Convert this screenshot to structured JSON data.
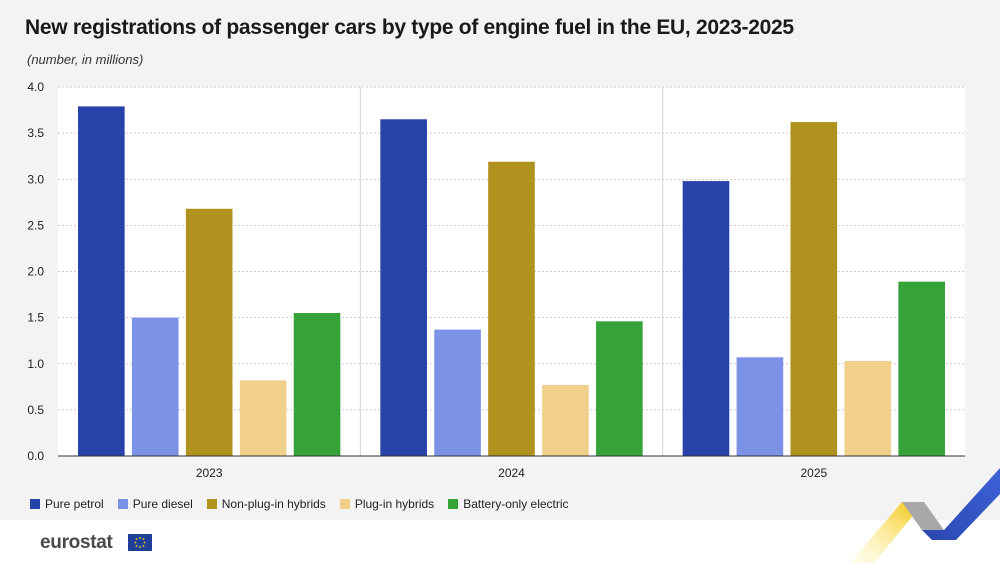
{
  "title": "New registrations of passenger cars by type of engine fuel in the EU, 2023-2025",
  "subtitle": "(number, in millions)",
  "brand": "eurostat",
  "colors": {
    "background": "#f3f3f3",
    "plot_background": "#ffffff",
    "grid": "#bdbdbd"
  },
  "chart_data": {
    "type": "bar",
    "categories": [
      "2023",
      "2024",
      "2025"
    ],
    "series": [
      {
        "name": "Pure petrol",
        "color": "#2743a8",
        "values": [
          3.79,
          3.65,
          2.98
        ]
      },
      {
        "name": "Pure diesel",
        "color": "#7b92e6",
        "values": [
          1.5,
          1.37,
          1.07
        ]
      },
      {
        "name": "Non-plug-in hybrids",
        "color": "#b0921f",
        "values": [
          2.68,
          3.19,
          3.62
        ]
      },
      {
        "name": "Plug-in hybrids",
        "color": "#f0d08a",
        "values": [
          0.82,
          0.77,
          1.03
        ]
      },
      {
        "name": "Battery-only electric",
        "color": "#36a23a",
        "values": [
          1.55,
          1.46,
          1.89
        ]
      }
    ],
    "yticks": [
      "0.0",
      "0.5",
      "1.0",
      "1.5",
      "2.0",
      "2.5",
      "3.0",
      "3.5",
      "4.0"
    ],
    "ylim": [
      0,
      4.0
    ],
    "xlabel": "",
    "ylabel": "",
    "grid": true,
    "legend_position": "bottom-left"
  }
}
